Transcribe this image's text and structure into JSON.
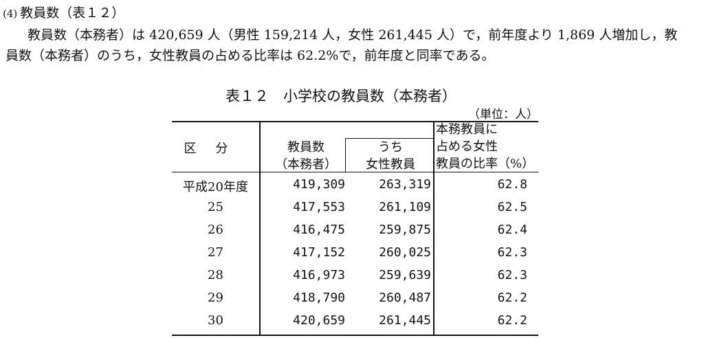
{
  "section": {
    "number": "(4)",
    "title": "教員数（表１２）"
  },
  "paragraph": {
    "line1": "教員数（本務者）は 420,659 人（男性 159,214 人，女性 261,445 人）で，前年度より 1,869 人増加し，教",
    "line2": "員数（本務者）のうち，女性教員の占める比率は 62.2%で，前年度と同率である。"
  },
  "table": {
    "caption": "表１２　小学校の教員数（本務者）",
    "unit": "（単位：人）",
    "headers": {
      "category": "区分",
      "total_line1": "教員数",
      "total_line2": "（本務者）",
      "female_line1": "うち",
      "female_line2": "女性教員",
      "ratio_line1": "本務教員に",
      "ratio_line2": "占める女性",
      "ratio_line3": "教員の比率（%）"
    },
    "rows": [
      {
        "year": "平成20年度",
        "total": "419,309",
        "female": "263,319",
        "ratio": "62.8"
      },
      {
        "year": "25",
        "total": "417,553",
        "female": "261,109",
        "ratio": "62.5"
      },
      {
        "year": "26",
        "total": "416,475",
        "female": "259,875",
        "ratio": "62.4"
      },
      {
        "year": "27",
        "total": "417,152",
        "female": "260,025",
        "ratio": "62.3"
      },
      {
        "year": "28",
        "total": "416,973",
        "female": "259,639",
        "ratio": "62.3"
      },
      {
        "year": "29",
        "total": "418,790",
        "female": "260,487",
        "ratio": "62.2"
      },
      {
        "year": "30",
        "total": "420,659",
        "female": "261,445",
        "ratio": "62.2"
      }
    ]
  }
}
